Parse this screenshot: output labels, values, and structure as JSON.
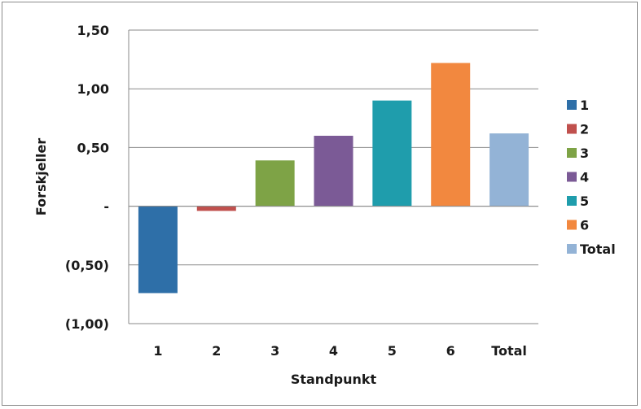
{
  "chart_data": {
    "type": "bar",
    "categories": [
      "1",
      "2",
      "3",
      "4",
      "5",
      "6",
      "Total"
    ],
    "values": [
      -0.74,
      -0.04,
      0.39,
      0.6,
      0.9,
      1.22,
      0.62
    ],
    "colors": [
      "#2e6fa8",
      "#c0504d",
      "#7ea346",
      "#7b5a96",
      "#1f9dac",
      "#f2883f",
      "#93b3d6"
    ],
    "xlabel": "Standpunkt",
    "ylabel": "Forskjeller",
    "ylim": [
      -1.0,
      1.5
    ],
    "yticks": [
      1.5,
      1.0,
      0.5,
      0,
      -0.5,
      -1.0
    ],
    "ytick_labels": [
      "1,50",
      "1,00",
      "0,50",
      "-",
      "(0,50)",
      "(1,00)"
    ],
    "grid": true,
    "legend": {
      "placement": "right",
      "entries": [
        "1",
        "2",
        "3",
        "4",
        "5",
        "6",
        "Total"
      ]
    }
  }
}
